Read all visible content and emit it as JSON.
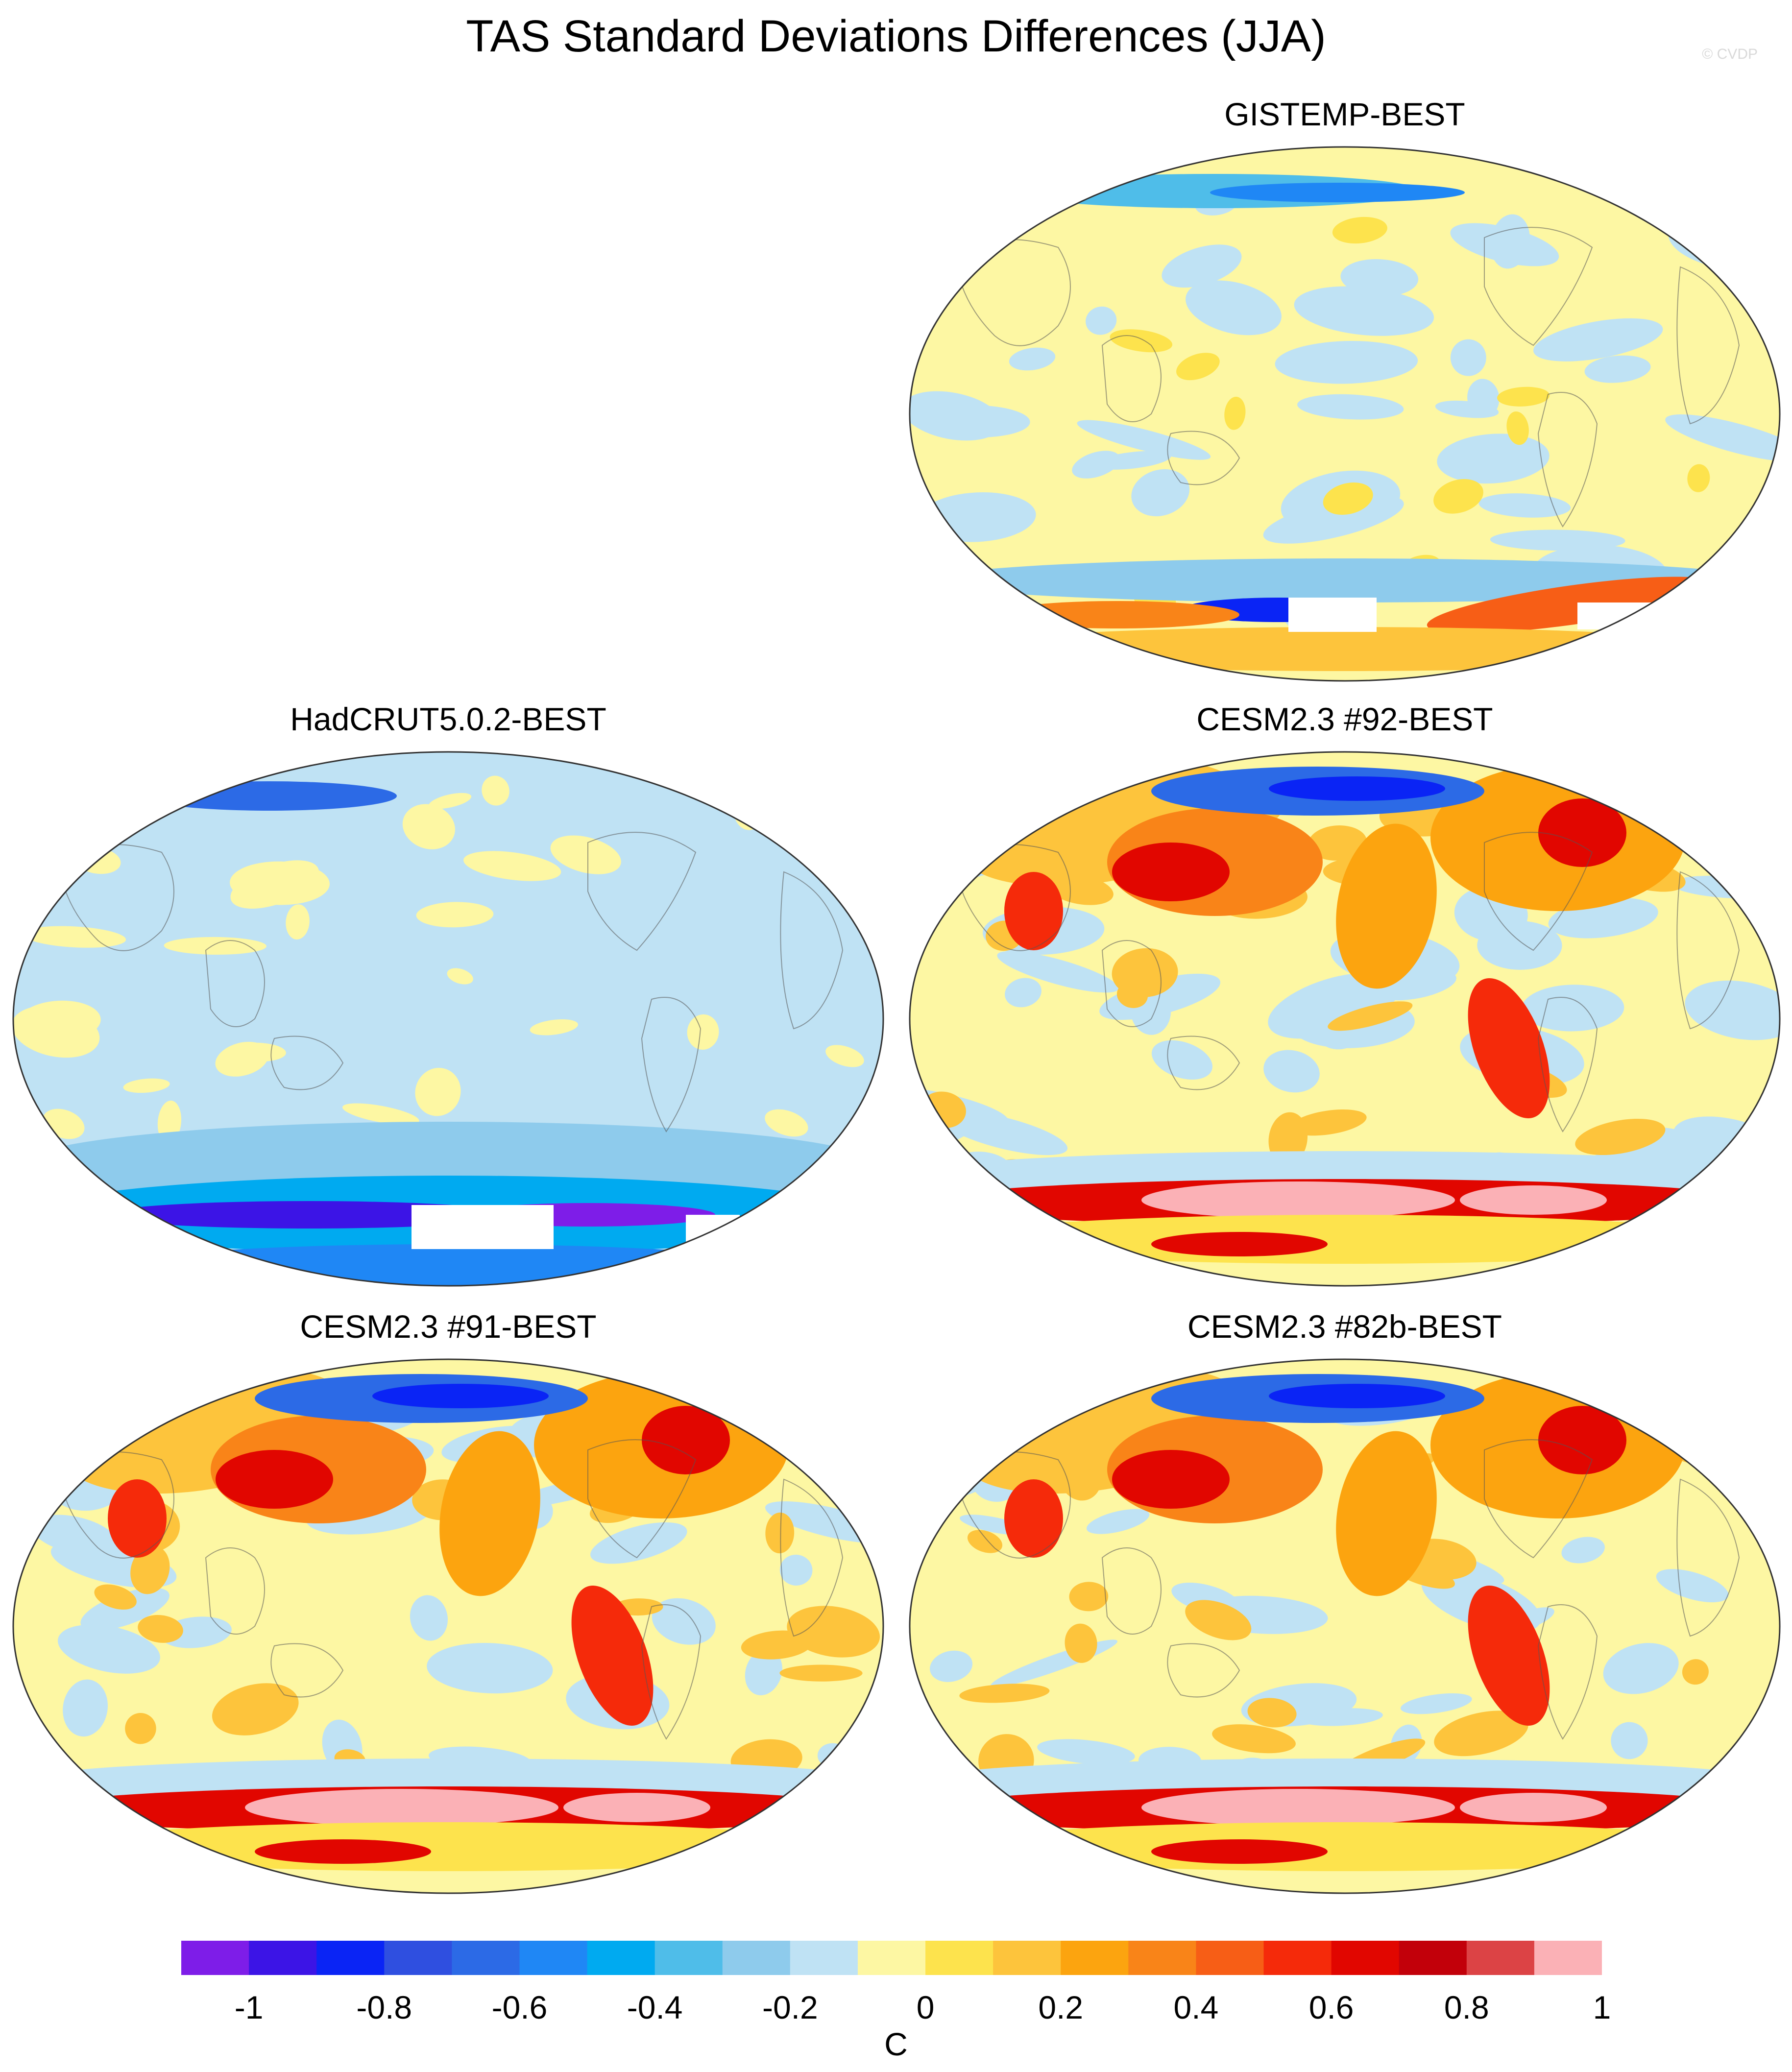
{
  "title": "TAS Standard Deviations Differences (JJA)",
  "credit": "© CVDP",
  "panels": [
    {
      "title": "GISTEMP-BEST",
      "pattern": "gistemp"
    },
    {
      "title": "HadCRUT5.0.2-BEST",
      "pattern": "hadcrut"
    },
    {
      "title": "CESM2.3 #92-BEST",
      "pattern": "model"
    },
    {
      "title": "CESM2.3 #91-BEST",
      "pattern": "model"
    },
    {
      "title": "CESM2.3 #82b-BEST",
      "pattern": "model"
    }
  ],
  "colorbar": {
    "colors": [
      "#7e1de8",
      "#3c14e6",
      "#0a24f5",
      "#2f4fe0",
      "#2c6ae6",
      "#1f87f5",
      "#00aaf0",
      "#4fbde9",
      "#8ecbec",
      "#bfe2f4",
      "#fdf7a3",
      "#fde34d",
      "#fdc43c",
      "#fca40f",
      "#f98418",
      "#f75e16",
      "#f52a0a",
      "#e10600",
      "#c2000a",
      "#dc4345",
      "#fbb1b6"
    ],
    "labels": [
      "-1",
      "-0.8",
      "-0.6",
      "-0.4",
      "-0.2",
      "0",
      "0.2",
      "0.4",
      "0.6",
      "0.8",
      "1"
    ],
    "units": "C"
  }
}
